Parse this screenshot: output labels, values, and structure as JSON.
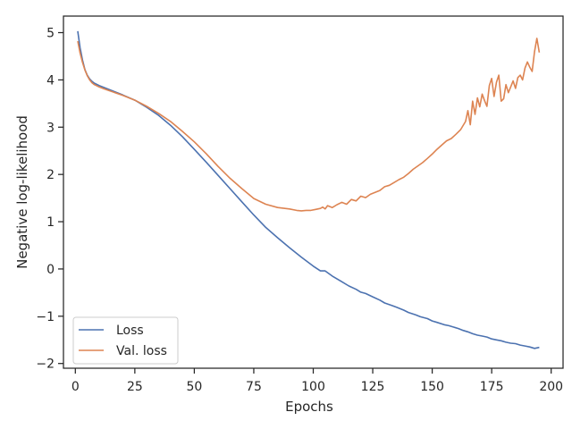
{
  "chart_data": {
    "type": "line",
    "title": "",
    "xlabel": "Epochs",
    "ylabel": "Negative log-likelihood",
    "xlim": [
      -5,
      205
    ],
    "ylim": [
      -2.1,
      5.35
    ],
    "xticks": [
      0,
      25,
      50,
      75,
      100,
      125,
      150,
      175,
      200
    ],
    "yticks": [
      -2,
      -1,
      0,
      1,
      2,
      3,
      4,
      5
    ],
    "grid": false,
    "legend_position": "lower-left",
    "series": [
      {
        "name": "Loss",
        "color": "#4c72b0",
        "x": [
          1,
          2,
          3,
          4,
          5,
          6,
          7,
          8,
          10,
          12,
          15,
          20,
          25,
          30,
          35,
          40,
          45,
          50,
          55,
          60,
          65,
          70,
          75,
          80,
          85,
          90,
          95,
          100,
          103,
          105,
          108,
          112,
          115,
          118,
          120,
          122,
          125,
          128,
          130,
          133,
          135,
          138,
          140,
          143,
          145,
          148,
          150,
          152,
          155,
          157,
          159,
          161,
          163,
          165,
          167,
          169,
          171,
          173,
          175,
          177,
          179,
          181,
          183,
          185,
          187,
          189,
          191,
          193,
          195
        ],
        "y": [
          5.03,
          4.68,
          4.42,
          4.22,
          4.1,
          4.02,
          3.97,
          3.93,
          3.88,
          3.84,
          3.78,
          3.68,
          3.57,
          3.42,
          3.25,
          3.04,
          2.8,
          2.53,
          2.26,
          1.98,
          1.7,
          1.42,
          1.14,
          0.88,
          0.66,
          0.45,
          0.25,
          0.06,
          -0.04,
          -0.04,
          -0.15,
          -0.27,
          -0.36,
          -0.43,
          -0.49,
          -0.52,
          -0.59,
          -0.66,
          -0.72,
          -0.77,
          -0.81,
          -0.87,
          -0.92,
          -0.97,
          -1.01,
          -1.05,
          -1.1,
          -1.13,
          -1.18,
          -1.2,
          -1.23,
          -1.26,
          -1.3,
          -1.33,
          -1.37,
          -1.4,
          -1.42,
          -1.44,
          -1.48,
          -1.5,
          -1.52,
          -1.55,
          -1.57,
          -1.58,
          -1.61,
          -1.63,
          -1.65,
          -1.68,
          -1.66
        ]
      },
      {
        "name": "Val. loss",
        "color": "#dd8452",
        "x": [
          1,
          2,
          3,
          4,
          5,
          6,
          7,
          8,
          10,
          12,
          15,
          20,
          25,
          30,
          35,
          40,
          45,
          50,
          55,
          60,
          65,
          70,
          75,
          80,
          85,
          90,
          93,
          95,
          97,
          99,
          101,
          103,
          104,
          105,
          106,
          108,
          110,
          112,
          114,
          116,
          118,
          120,
          122,
          124,
          126,
          128,
          130,
          132,
          134,
          136,
          138,
          140,
          142,
          144,
          146,
          148,
          150,
          152,
          154,
          156,
          158,
          160,
          162,
          164,
          165,
          166,
          167,
          168,
          169,
          170,
          171,
          172,
          173,
          174,
          175,
          176,
          177,
          178,
          179,
          180,
          181,
          182,
          183,
          184,
          185,
          186,
          187,
          188,
          189,
          190,
          191,
          192,
          193,
          194,
          195
        ],
        "y": [
          4.82,
          4.57,
          4.37,
          4.21,
          4.09,
          4.0,
          3.94,
          3.9,
          3.85,
          3.81,
          3.76,
          3.67,
          3.57,
          3.44,
          3.29,
          3.12,
          2.91,
          2.69,
          2.44,
          2.17,
          1.92,
          1.7,
          1.49,
          1.37,
          1.3,
          1.27,
          1.24,
          1.23,
          1.24,
          1.24,
          1.26,
          1.28,
          1.31,
          1.27,
          1.34,
          1.3,
          1.36,
          1.41,
          1.37,
          1.47,
          1.44,
          1.54,
          1.51,
          1.58,
          1.62,
          1.66,
          1.74,
          1.77,
          1.83,
          1.89,
          1.94,
          2.02,
          2.11,
          2.18,
          2.25,
          2.34,
          2.43,
          2.53,
          2.62,
          2.71,
          2.76,
          2.85,
          2.95,
          3.12,
          3.35,
          3.05,
          3.55,
          3.27,
          3.62,
          3.43,
          3.7,
          3.56,
          3.44,
          3.88,
          4.03,
          3.65,
          3.95,
          4.1,
          3.55,
          3.6,
          3.9,
          3.73,
          3.85,
          3.98,
          3.82,
          4.05,
          4.1,
          4.0,
          4.25,
          4.38,
          4.27,
          4.18,
          4.6,
          4.88,
          4.58
        ]
      }
    ]
  }
}
